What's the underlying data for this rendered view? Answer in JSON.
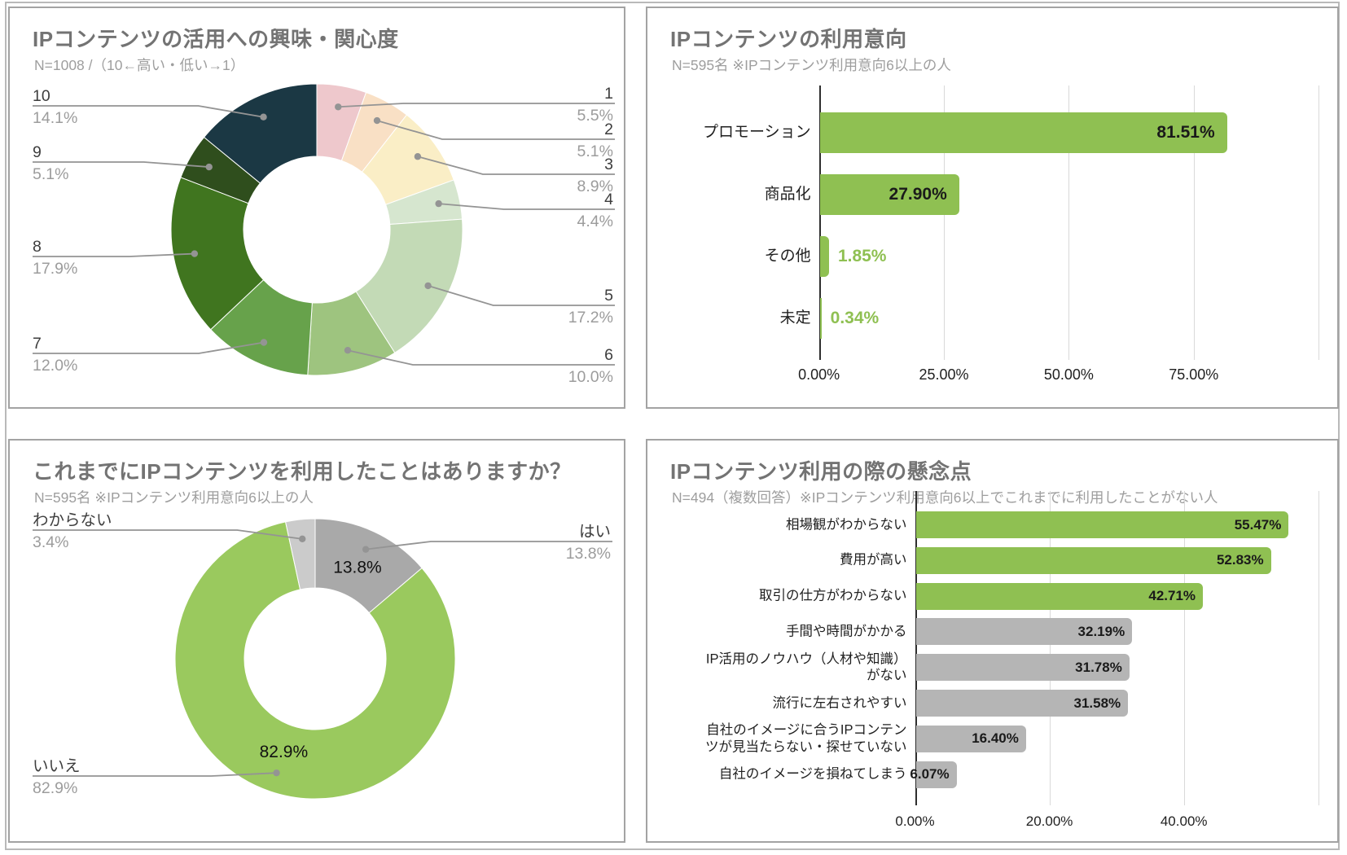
{
  "colors": {
    "green_bar": "#8fc052",
    "gray_bar": "#b5b5b5",
    "panel_border": "#a3a3a3",
    "title_text": "#737373",
    "subtitle_text": "#9e9e9e",
    "leader_line": "#949494",
    "gridline": "#d9d9d9",
    "axis_line": "#2e2e2e",
    "value_black": "#1a1a1a"
  },
  "chart_data": [
    {
      "type": "donut",
      "title": "IPコンテンツの活用への興味・関心度",
      "subtitle": "N=1008 /（10←高い・低い→1）",
      "labels": [
        "1",
        "2",
        "3",
        "4",
        "5",
        "6",
        "7",
        "8",
        "9",
        "10"
      ],
      "values": [
        5.5,
        5.1,
        8.9,
        4.4,
        17.2,
        10.0,
        12.0,
        17.9,
        5.1,
        14.1
      ],
      "pct_labels": [
        "5.5%",
        "5.1%",
        "8.9%",
        "4.4%",
        "17.2%",
        "10.0%",
        "12.0%",
        "17.9%",
        "5.1%",
        "14.1%"
      ],
      "colors": [
        "#eec8cc",
        "#f9e0c5",
        "#faeec6",
        "#d6e6cf",
        "#c3dab6",
        "#9ec47f",
        "#67a24b",
        "#40751f",
        "#2f4e1d",
        "#1b3844"
      ],
      "legend_position": "callout-labels",
      "grid": false
    },
    {
      "type": "bar",
      "title": "IPコンテンツの利用意向",
      "subtitle": "N=595名 ※IPコンテンツ利用意向6以上の人",
      "categories": [
        "プロモーション",
        "商品化",
        "その他",
        "未定"
      ],
      "values": [
        81.51,
        27.9,
        1.85,
        0.34
      ],
      "value_labels": [
        "81.51%",
        "27.90%",
        "1.85%",
        "0.34%"
      ],
      "bar_colors": [
        "#8fc052",
        "#8fc052",
        "#8fc052",
        "#8fc052"
      ],
      "outside_value_color": "#8fc052",
      "axis": {
        "xlim": [
          0,
          100
        ],
        "ticks": [
          {
            "v": 0,
            "label": "0.00%"
          },
          {
            "v": 25,
            "label": "25.00%"
          },
          {
            "v": 50,
            "label": "50.00%"
          },
          {
            "v": 75,
            "label": "75.00%"
          }
        ],
        "gridlines": [
          25,
          50,
          75,
          100
        ]
      },
      "grid": true
    },
    {
      "type": "donut",
      "title": "これまでにIPコンテンツを利用したことはありますか？",
      "subtitle": "N=595名 ※IPコンテンツ利用意向6以上の人",
      "labels": [
        "はい",
        "いいえ",
        "わからない"
      ],
      "values": [
        13.8,
        82.9,
        3.4
      ],
      "pct_labels": [
        "13.8%",
        "82.9%",
        "3.4%"
      ],
      "colors": [
        "#a9a9a9",
        "#9ac95e",
        "#cbcbcb"
      ],
      "legend_position": "callout-labels",
      "grid": false
    },
    {
      "type": "bar",
      "title": "IPコンテンツ利用の際の懸念点",
      "subtitle": "N=494（複数回答）※IPコンテンツ利用意向6以上でこれまでに利用したことがない人",
      "categories": [
        "相場観がわからない",
        "費用が高い",
        "取引の仕方がわからない",
        "手間や時間がかかる",
        "IP活用のノウハウ（人材や知識）\nがない",
        "流行に左右されやすい",
        "自社のイメージに合うIPコンテン\nツが見当たらない・探せていない",
        "自社のイメージを損ねてしまう"
      ],
      "values": [
        55.47,
        52.83,
        42.71,
        32.19,
        31.78,
        31.58,
        16.4,
        6.07
      ],
      "value_labels": [
        "55.47%",
        "52.83%",
        "42.71%",
        "32.19%",
        "31.78%",
        "31.58%",
        "16.40%",
        "6.07%"
      ],
      "bar_colors": [
        "#8fc052",
        "#8fc052",
        "#8fc052",
        "#b5b5b5",
        "#b5b5b5",
        "#b5b5b5",
        "#b5b5b5",
        "#b5b5b5"
      ],
      "outside_value_color": "#8fc052",
      "axis": {
        "xlim": [
          0,
          60
        ],
        "ticks": [
          {
            "v": 0,
            "label": "0.00%"
          },
          {
            "v": 20,
            "label": "20.00%"
          },
          {
            "v": 40,
            "label": "40.00%"
          }
        ],
        "gridlines": [
          20,
          40,
          60
        ]
      },
      "grid": true
    }
  ]
}
